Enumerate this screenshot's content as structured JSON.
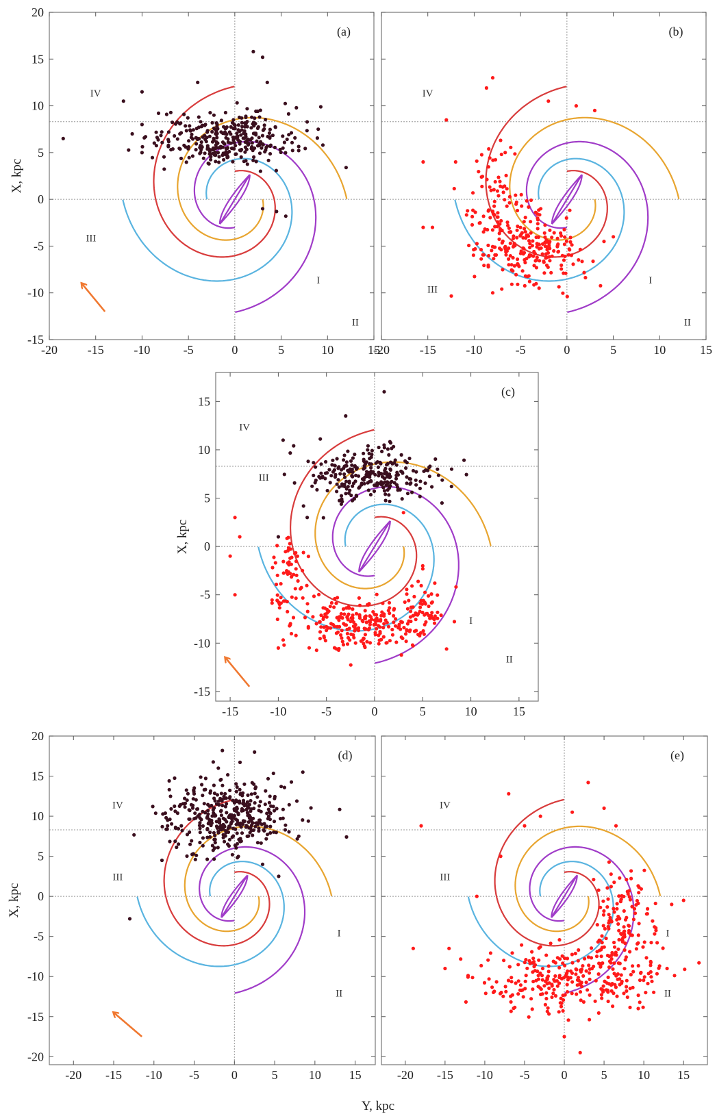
{
  "figure": {
    "x_axis_title": "Y, kpc",
    "y_axis_title": "X, kpc"
  },
  "colors": {
    "arm_I": "#e8a530",
    "arm_II": "#a03cc8",
    "arm_III": "#5ab4e0",
    "arm_IV": "#d83c3c",
    "arrow": "#f07830",
    "black_points": "#3a0f1e",
    "red_points": "#ff1a1a",
    "frame": "#777777",
    "guide": "#999999"
  },
  "chart_data": [
    {
      "type": "scatter",
      "panel": "(a)",
      "xlim": [
        -20,
        15
      ],
      "ylim": [
        -15,
        20
      ],
      "x_ticks": [
        "-20",
        "-15",
        "-10",
        "-5",
        "0",
        "5",
        "10",
        "15"
      ],
      "y_ticks": [
        "-15",
        "-10",
        "-5",
        "0",
        "5",
        "10",
        "15",
        "20"
      ],
      "ylabel": "X, kpc",
      "sun_x_kpc": 8.3,
      "arm_labels": [
        {
          "text": "IV",
          "y": -15,
          "x": 11
        },
        {
          "text": "III",
          "y": -15.5,
          "x": -4.5
        },
        {
          "text": "I",
          "y": 9,
          "x": -9
        },
        {
          "text": "II",
          "y": 13,
          "x": -13.5
        }
      ],
      "arrow": {
        "from": [
          -14,
          -12
        ],
        "to": [
          -16.5,
          -9
        ]
      },
      "clouds": [
        {
          "color": "black",
          "count": 330,
          "center": [
            -1,
            6.5
          ],
          "spread": [
            3.8,
            1.4
          ]
        }
      ],
      "outliers": [
        {
          "color": "black",
          "points": [
            [
              -18.5,
              6.5
            ],
            [
              -12,
              10.5
            ],
            [
              -10,
              11.5
            ],
            [
              -10,
              8
            ],
            [
              -4,
              12.5
            ],
            [
              2,
              15.8
            ],
            [
              3,
              15.2
            ],
            [
              3.5,
              12.5
            ],
            [
              9,
              7.5
            ],
            [
              9.5,
              5.8
            ],
            [
              12,
              3.4
            ],
            [
              5.5,
              -1.8
            ],
            [
              -10,
              5
            ],
            [
              3,
              -1
            ],
            [
              4.5,
              -1.3
            ]
          ]
        }
      ]
    },
    {
      "type": "scatter",
      "panel": "(b)",
      "xlim": [
        -20,
        15
      ],
      "ylim": [
        -15,
        20
      ],
      "x_ticks": [
        "-20",
        "-15",
        "-10",
        "-5",
        "0",
        "5",
        "10",
        "15"
      ],
      "y_ticks": [],
      "sun_x_kpc": 8.3,
      "arm_labels": [
        {
          "text": "IV",
          "y": -15,
          "x": 11
        },
        {
          "text": "III",
          "y": -14.5,
          "x": -10
        },
        {
          "text": "I",
          "y": 9,
          "x": -9
        },
        {
          "text": "II",
          "y": 13,
          "x": -13.5
        }
      ],
      "clouds": [
        {
          "color": "red",
          "count": 200,
          "center": [
            -4,
            -5.5
          ],
          "spread": [
            2.6,
            1.8
          ]
        },
        {
          "color": "red",
          "count": 90,
          "center": [
            -8,
            -1
          ],
          "spread": [
            1.5,
            3.5
          ]
        }
      ],
      "outliers": [
        {
          "color": "red",
          "points": [
            [
              -8,
              13
            ],
            [
              -13,
              8.5
            ],
            [
              -2,
              10.5
            ],
            [
              1,
              10
            ],
            [
              3,
              9.5
            ],
            [
              -15.5,
              4
            ],
            [
              -14.5,
              -3
            ],
            [
              -15.5,
              -3
            ],
            [
              -8,
              -10
            ],
            [
              -3,
              -9.5
            ],
            [
              -12,
              4
            ],
            [
              4,
              -4.5
            ],
            [
              5,
              -4
            ]
          ]
        }
      ]
    },
    {
      "type": "scatter",
      "panel": "(c)",
      "xlim": [
        -16.5,
        17
      ],
      "ylim": [
        -16,
        18
      ],
      "x_ticks": [
        "-15",
        "-10",
        "-5",
        "0",
        "5",
        "10",
        "15"
      ],
      "y_ticks": [
        "-15",
        "-10",
        "-5",
        "0",
        "5",
        "10",
        "15"
      ],
      "ylabel": "X, kpc",
      "sun_x_kpc": 8.3,
      "arm_labels": [
        {
          "text": "IV",
          "y": -13.5,
          "x": 12
        },
        {
          "text": "III",
          "y": -11.5,
          "x": 6.8
        },
        {
          "text": "I",
          "y": 10,
          "x": -8
        },
        {
          "text": "II",
          "y": 14,
          "x": -12
        }
      ],
      "arrow": {
        "from": [
          -13,
          -14.5
        ],
        "to": [
          -15.5,
          -11.5
        ]
      },
      "clouds": [
        {
          "color": "black",
          "count": 260,
          "center": [
            -0.5,
            7.5
          ],
          "spread": [
            3.2,
            1.3
          ]
        },
        {
          "color": "red",
          "count": 230,
          "center": [
            -1,
            -8
          ],
          "spread": [
            3,
            1.3
          ]
        },
        {
          "color": "red",
          "count": 70,
          "center": [
            -9,
            -4
          ],
          "spread": [
            1.2,
            2.8
          ]
        },
        {
          "color": "red",
          "count": 50,
          "center": [
            5,
            -6
          ],
          "spread": [
            1.2,
            1.6
          ]
        }
      ],
      "outliers": [
        {
          "color": "black",
          "points": [
            [
              1,
              16
            ],
            [
              -3,
              13.5
            ],
            [
              -9.5,
              11
            ],
            [
              8,
              8
            ],
            [
              7,
              4.5
            ],
            [
              -10,
              1
            ],
            [
              -7,
              3
            ]
          ]
        },
        {
          "color": "red",
          "points": [
            [
              -15,
              -1
            ],
            [
              -14.5,
              -5
            ],
            [
              -14,
              1
            ],
            [
              -14.5,
              3
            ],
            [
              -10,
              -10.5
            ],
            [
              3,
              3.5
            ],
            [
              5,
              -2
            ]
          ]
        }
      ]
    },
    {
      "type": "scatter",
      "panel": "(d)",
      "xlim": [
        -23,
        17.5
      ],
      "ylim": [
        -21,
        20
      ],
      "x_ticks": [
        "-20",
        "-15",
        "-10",
        "-5",
        "0",
        "5",
        "10",
        "15"
      ],
      "y_ticks": [
        "-20",
        "-15",
        "-10",
        "-5",
        "0",
        "5",
        "10",
        "15",
        "20"
      ],
      "ylabel": "X, kpc",
      "sun_x_kpc": 8.3,
      "arm_labels": [
        {
          "text": "IV",
          "y": -14.5,
          "x": 11
        },
        {
          "text": "III",
          "y": -14.5,
          "x": 2
        },
        {
          "text": "I",
          "y": 13,
          "x": -5
        },
        {
          "text": "II",
          "y": 13,
          "x": -12.5
        }
      ],
      "arrow": {
        "from": [
          -11.5,
          -17.5
        ],
        "to": [
          -15,
          -14.5
        ]
      },
      "clouds": [
        {
          "color": "black",
          "count": 380,
          "center": [
            -1,
            10
          ],
          "spread": [
            4.2,
            2.3
          ]
        }
      ],
      "outliers": [
        {
          "color": "black",
          "points": [
            [
              -1.5,
              18.2
            ],
            [
              2.5,
              18
            ],
            [
              8.5,
              15.5
            ],
            [
              -2,
              16
            ],
            [
              -9,
              4.5
            ],
            [
              -13,
              -2.8
            ],
            [
              3.5,
              4
            ],
            [
              5.5,
              2.5
            ],
            [
              8,
              7.5
            ]
          ]
        }
      ]
    },
    {
      "type": "scatter",
      "panel": "(e)",
      "xlim": [
        -23,
        18
      ],
      "ylim": [
        -21,
        20
      ],
      "x_ticks": [
        "-20",
        "-15",
        "-10",
        "-5",
        "0",
        "5",
        "10",
        "15"
      ],
      "y_ticks": [],
      "xlabel": "Y, kpc",
      "sun_x_kpc": 8.3,
      "arm_labels": [
        {
          "text": "IV",
          "y": -15,
          "x": 11
        },
        {
          "text": "III",
          "y": -15,
          "x": 2
        },
        {
          "text": "I",
          "y": 13,
          "x": -5
        },
        {
          "text": "II",
          "y": 13,
          "x": -12.5
        }
      ],
      "clouds": [
        {
          "color": "red",
          "count": 260,
          "center": [
            0,
            -10.5
          ],
          "spread": [
            5.5,
            2.2
          ]
        },
        {
          "color": "red",
          "count": 150,
          "center": [
            7.5,
            -4
          ],
          "spread": [
            1.8,
            4
          ]
        }
      ],
      "outliers": [
        {
          "color": "red",
          "points": [
            [
              3,
              14.2
            ],
            [
              -18,
              8.8
            ],
            [
              -19,
              -6.5
            ],
            [
              -15,
              -9
            ],
            [
              -8,
              5
            ],
            [
              -3,
              10
            ],
            [
              1,
              10.5
            ],
            [
              5,
              11
            ],
            [
              15,
              -0.5
            ],
            [
              13.5,
              -1
            ],
            [
              0,
              -17.5
            ],
            [
              2,
              -19.5
            ],
            [
              -5,
              8.8
            ],
            [
              -7,
              12.8
            ],
            [
              6.5,
              8.8
            ],
            [
              -11,
              0
            ],
            [
              -14.5,
              -6.5
            ]
          ]
        }
      ]
    }
  ]
}
